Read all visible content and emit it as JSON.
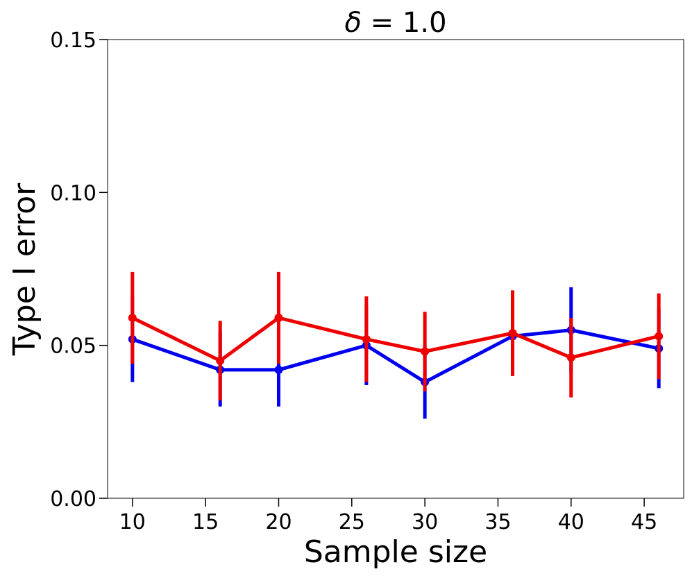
{
  "chart_data": {
    "type": "line",
    "title_symbol": "δ",
    "title_rest": " = 1.0",
    "xlabel": "Sample size",
    "ylabel": "Type I error",
    "xlim": [
      8.3,
      47.7
    ],
    "ylim": [
      0.0,
      0.15
    ],
    "xticks": [
      10,
      15,
      20,
      25,
      30,
      35,
      40,
      45
    ],
    "yticks": [
      0.0,
      0.05,
      0.1,
      0.15
    ],
    "ytick_labels": [
      "0.00",
      "0.05",
      "0.10",
      "0.15"
    ],
    "x": [
      10,
      16,
      20,
      26,
      30,
      36,
      40,
      46
    ],
    "series": [
      {
        "name": "blue-series",
        "color": "#0000ee",
        "values": [
          0.052,
          0.042,
          0.042,
          0.05,
          0.038,
          0.053,
          0.055,
          0.049
        ],
        "err_low": [
          0.038,
          0.03,
          0.03,
          0.037,
          0.026,
          0.04,
          0.041,
          0.036
        ],
        "err_high": [
          0.066,
          0.055,
          0.055,
          0.063,
          0.05,
          0.066,
          0.069,
          0.062
        ]
      },
      {
        "name": "red-series",
        "color": "#ee0000",
        "values": [
          0.059,
          0.045,
          0.059,
          0.052,
          0.048,
          0.054,
          0.046,
          0.053
        ],
        "err_low": [
          0.044,
          0.032,
          0.044,
          0.038,
          0.035,
          0.04,
          0.033,
          0.039
        ],
        "err_high": [
          0.074,
          0.058,
          0.074,
          0.066,
          0.061,
          0.068,
          0.059,
          0.067
        ]
      }
    ]
  }
}
